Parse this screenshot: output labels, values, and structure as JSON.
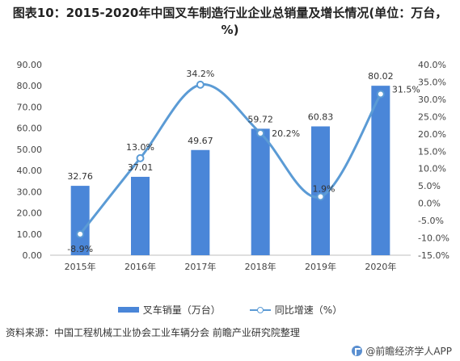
{
  "chart_data": {
    "type": "bar",
    "title": "图表10：2015-2020年中国叉车制造行业企业总销量及增长情况(单位：万台，%)",
    "categories": [
      "2015年",
      "2016年",
      "2017年",
      "2018年",
      "2019年",
      "2020年"
    ],
    "series": [
      {
        "name": "叉车销量（万台）",
        "type": "bar",
        "axis": "left",
        "values": [
          32.76,
          37.01,
          49.67,
          59.72,
          60.83,
          80.02
        ],
        "labels": [
          "32.76",
          "37.01",
          "49.67",
          "59.72",
          "60.83",
          "80.02"
        ],
        "color": "#4a86d8"
      },
      {
        "name": "同比增速（%）",
        "type": "line",
        "axis": "right",
        "values": [
          -8.9,
          13.0,
          34.2,
          20.2,
          1.9,
          31.5
        ],
        "labels": [
          "-8.9%",
          "13.0%",
          "34.2%",
          "20.2%",
          "1.9%",
          "31.5%"
        ],
        "color": "#5b9bd5"
      }
    ],
    "y_left": {
      "ylim": [
        0,
        90
      ],
      "ticks": [
        "0.00",
        "10.00",
        "20.00",
        "30.00",
        "40.00",
        "50.00",
        "60.00",
        "70.00",
        "80.00",
        "90.00"
      ]
    },
    "y_right": {
      "ylim": [
        -15,
        40
      ],
      "ticks": [
        "-15.0%",
        "-10.0%",
        "-5.0%",
        "0.0%",
        "5.0%",
        "10.0%",
        "15.0%",
        "20.0%",
        "25.0%",
        "30.0%",
        "35.0%",
        "40.0%"
      ]
    },
    "grid": false,
    "legend": "bottom"
  },
  "footer": {
    "source": "资料来源：中国工程机械工业协会工业车辆分会 前瞻产业研究院整理",
    "brand": "@前瞻经济学人APP"
  }
}
